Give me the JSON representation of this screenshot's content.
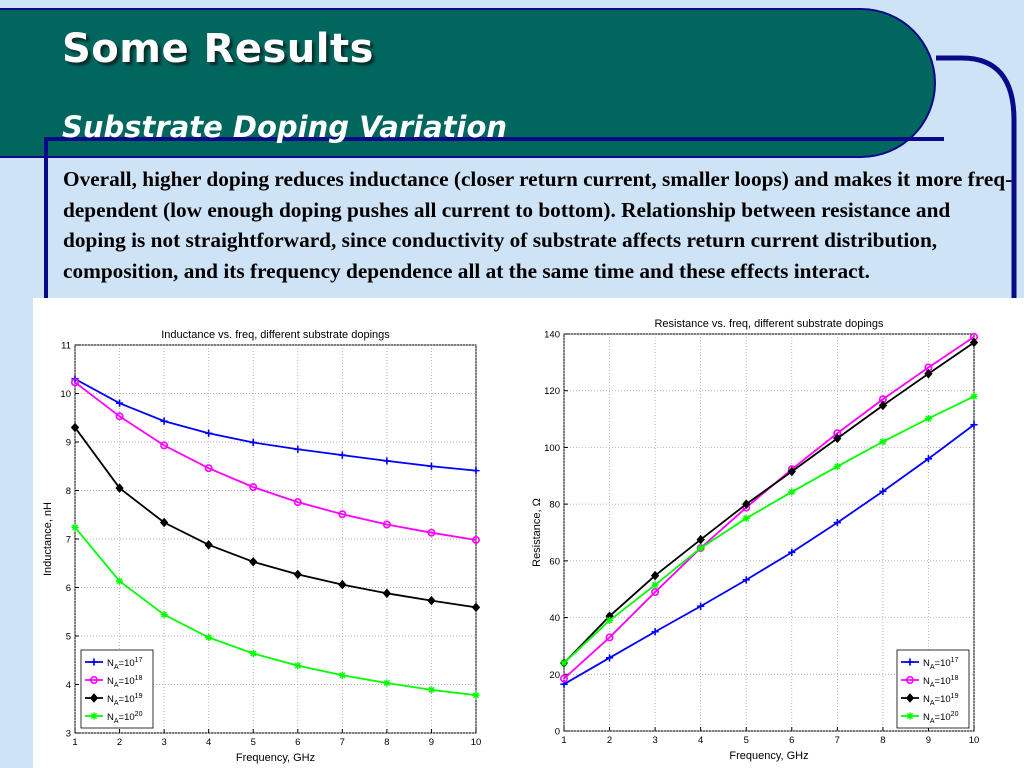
{
  "slide": {
    "title": "Some Results",
    "subtitle": "Substrate Doping Variation",
    "body": "Overall, higher doping reduces inductance (closer return current, smaller loops) and makes it more freq-dependent (low enough doping pushes all current to bottom). Relationship between resistance and doping is not straightforward, since conductivity of substrate affects return current distribution, composition, and its frequency dependence all at the same time and these effects interact."
  },
  "colors": {
    "title_bar": "#00665e",
    "frame": "#0a0a88",
    "background": "#cfe3f6"
  },
  "chart_data": [
    {
      "type": "line",
      "title": "Inductance vs. freq, different substrate dopings",
      "xlabel": "Frequency, GHz",
      "ylabel": "Inductance, nH",
      "xlim": [
        1,
        10
      ],
      "ylim": [
        3,
        11
      ],
      "xticks": [
        1,
        2,
        3,
        4,
        5,
        6,
        7,
        8,
        9,
        10
      ],
      "yticks": [
        3,
        4,
        5,
        6,
        7,
        8,
        9,
        10,
        11
      ],
      "grid": true,
      "legend_position": "bottom-left",
      "x": [
        1,
        2,
        3,
        4,
        5,
        6,
        7,
        8,
        9,
        10
      ],
      "series": [
        {
          "legend_base": "N",
          "legend_sub": "A",
          "legend_mid": "=10",
          "legend_exp": "17",
          "color": "#0000ff",
          "marker": "plus",
          "values": [
            10.3,
            9.8,
            9.43,
            9.18,
            8.99,
            8.85,
            8.73,
            8.61,
            8.5,
            8.41
          ]
        },
        {
          "legend_base": "N",
          "legend_sub": "A",
          "legend_mid": "=10",
          "legend_exp": "18",
          "color": "#ff00ff",
          "marker": "circle",
          "values": [
            10.23,
            9.53,
            8.93,
            8.46,
            8.07,
            7.76,
            7.51,
            7.3,
            7.13,
            6.98
          ]
        },
        {
          "legend_base": "N",
          "legend_sub": "A",
          "legend_mid": "=10",
          "legend_exp": "19",
          "color": "#000000",
          "marker": "diamond",
          "values": [
            9.3,
            8.05,
            7.34,
            6.88,
            6.53,
            6.27,
            6.06,
            5.88,
            5.73,
            5.59
          ]
        },
        {
          "legend_base": "N",
          "legend_sub": "A",
          "legend_mid": "=10",
          "legend_exp": "20",
          "color": "#00ff00",
          "marker": "star",
          "values": [
            7.24,
            6.13,
            5.44,
            4.97,
            4.64,
            4.39,
            4.19,
            4.03,
            3.89,
            3.78
          ]
        }
      ]
    },
    {
      "type": "line",
      "title": "Resistance vs. freq, different substrate dopings",
      "xlabel": "Frequency, GHz",
      "ylabel": "Resistance, Ω",
      "xlim": [
        1,
        10
      ],
      "ylim": [
        0,
        140
      ],
      "xticks": [
        1,
        2,
        3,
        4,
        5,
        6,
        7,
        8,
        9,
        10
      ],
      "yticks": [
        0,
        20,
        40,
        60,
        80,
        100,
        120,
        140
      ],
      "grid": true,
      "legend_position": "bottom-right",
      "x": [
        1,
        2,
        3,
        4,
        5,
        6,
        7,
        8,
        9,
        10
      ],
      "series": [
        {
          "legend_base": "N",
          "legend_sub": "A",
          "legend_mid": "=10",
          "legend_exp": "17",
          "color": "#0000ff",
          "marker": "plus",
          "values": [
            16.5,
            25.8,
            35,
            44,
            53.3,
            63,
            73.5,
            84.5,
            96,
            108
          ]
        },
        {
          "legend_base": "N",
          "legend_sub": "A",
          "legend_mid": "=10",
          "legend_exp": "18",
          "color": "#ff00ff",
          "marker": "circle",
          "values": [
            18.5,
            33,
            49,
            64.5,
            78.8,
            92.3,
            105,
            117,
            128.2,
            139
          ]
        },
        {
          "legend_base": "N",
          "legend_sub": "A",
          "legend_mid": "=10",
          "legend_exp": "19",
          "color": "#000000",
          "marker": "diamond",
          "values": [
            24,
            40.5,
            54.8,
            67.5,
            80,
            91.5,
            103.2,
            114.8,
            126,
            137
          ]
        },
        {
          "legend_base": "N",
          "legend_sub": "A",
          "legend_mid": "=10",
          "legend_exp": "20",
          "color": "#00ff00",
          "marker": "star",
          "values": [
            24,
            39,
            51.5,
            64.5,
            75,
            84.3,
            93.3,
            102,
            110.2,
            118
          ]
        }
      ]
    }
  ]
}
